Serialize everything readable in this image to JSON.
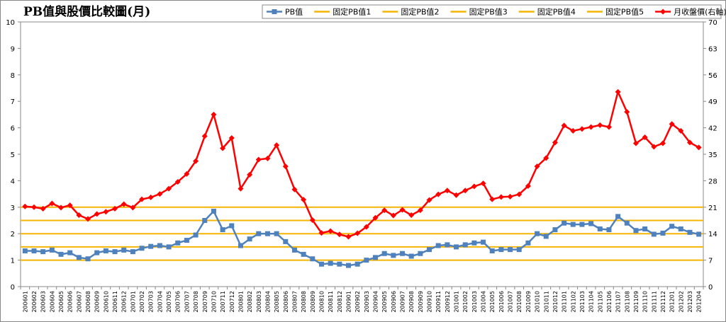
{
  "chart_data": {
    "type": "line",
    "title": "PB值與股價比較圖(月)",
    "categories": [
      "200601",
      "200602",
      "200603",
      "200604",
      "200605",
      "200606",
      "200607",
      "200608",
      "200609",
      "200610",
      "200611",
      "200612",
      "200701",
      "200702",
      "200703",
      "200704",
      "200705",
      "200706",
      "200707",
      "200708",
      "200709",
      "200710",
      "200711",
      "200712",
      "200801",
      "200802",
      "200803",
      "200804",
      "200805",
      "200806",
      "200807",
      "200808",
      "200809",
      "200810",
      "200811",
      "200812",
      "200901",
      "200902",
      "200903",
      "200904",
      "200905",
      "200906",
      "200907",
      "200908",
      "200909",
      "200910",
      "200911",
      "200912",
      "201001",
      "201002",
      "201003",
      "201004",
      "201005",
      "201006",
      "201007",
      "201008",
      "201009",
      "201010",
      "201011",
      "201012",
      "201101",
      "201102",
      "201103",
      "201104",
      "201105",
      "201106",
      "201107",
      "201108",
      "201109",
      "201110",
      "201111",
      "201112",
      "201201",
      "201202",
      "201203",
      "201204"
    ],
    "y_left": {
      "min": 0,
      "max": 10,
      "step": 1
    },
    "y_right": {
      "min": 0,
      "max": 70,
      "step": 7
    },
    "grid": false,
    "legend_position": "top-right",
    "series": [
      {
        "name": "PB值",
        "axis": "left",
        "color": "#4f81bd",
        "marker": "square",
        "values": [
          1.35,
          1.35,
          1.32,
          1.38,
          1.22,
          1.28,
          1.1,
          1.05,
          1.28,
          1.35,
          1.32,
          1.38,
          1.32,
          1.45,
          1.52,
          1.55,
          1.5,
          1.65,
          1.75,
          1.95,
          2.5,
          2.85,
          2.15,
          2.3,
          1.55,
          1.8,
          2.0,
          2.0,
          2.0,
          1.7,
          1.38,
          1.22,
          1.05,
          0.85,
          0.88,
          0.85,
          0.8,
          0.85,
          1.0,
          1.1,
          1.25,
          1.18,
          1.25,
          1.15,
          1.25,
          1.4,
          1.55,
          1.58,
          1.5,
          1.58,
          1.65,
          1.68,
          1.35,
          1.4,
          1.4,
          1.4,
          1.65,
          2.0,
          1.9,
          2.15,
          2.4,
          2.35,
          2.35,
          2.38,
          2.18,
          2.15,
          2.65,
          2.4,
          2.12,
          2.18,
          1.98,
          2.02,
          2.28,
          2.18,
          2.05,
          1.98
        ]
      },
      {
        "name": "固定PB值1",
        "axis": "left",
        "color": "#f5b400",
        "constant": 1
      },
      {
        "name": "固定PB值2",
        "axis": "left",
        "color": "#f5b400",
        "constant": 1.5
      },
      {
        "name": "固定PB值3",
        "axis": "left",
        "color": "#f5b400",
        "constant": 2
      },
      {
        "name": "固定PB值4",
        "axis": "left",
        "color": "#f5b400",
        "constant": 2.5
      },
      {
        "name": "固定PB值5",
        "axis": "left",
        "color": "#f5b400",
        "constant": 3
      },
      {
        "name": "月收盤價(右軸)",
        "axis": "right",
        "color": "#ff0000",
        "marker": "diamond",
        "values": [
          21.2,
          21.0,
          20.6,
          22.0,
          20.9,
          21.5,
          18.9,
          17.9,
          19.2,
          19.8,
          20.6,
          21.8,
          20.9,
          23.1,
          23.6,
          24.5,
          25.9,
          27.7,
          29.8,
          33.2,
          39.8,
          45.5,
          36.6,
          39.3,
          25.9,
          29.6,
          33.6,
          33.9,
          37.4,
          31.8,
          25.7,
          23.0,
          17.6,
          14.2,
          14.7,
          13.8,
          13.2,
          14.1,
          15.8,
          18.2,
          20.2,
          18.8,
          20.3,
          18.9,
          20.2,
          22.9,
          24.4,
          25.4,
          24.2,
          25.4,
          26.5,
          27.3,
          23.1,
          23.7,
          23.8,
          24.4,
          26.6,
          31.8,
          34.0,
          38.1,
          42.6,
          41.2,
          41.7,
          42.2,
          42.7,
          42.2,
          51.5,
          46.2,
          37.9,
          39.5,
          37.0,
          37.9,
          43.0,
          41.2,
          38.1,
          36.8
        ]
      }
    ]
  }
}
